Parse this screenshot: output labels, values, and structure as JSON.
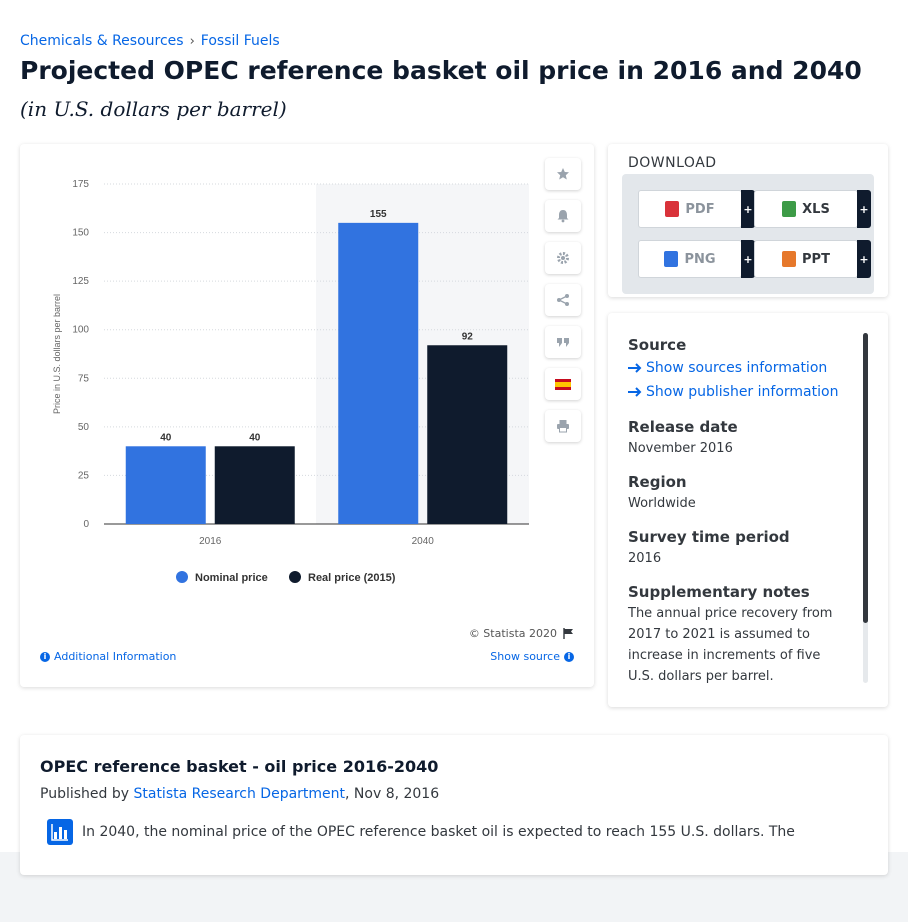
{
  "breadcrumb": [
    {
      "label": "Chemicals & Resources"
    },
    {
      "label": "Fossil Fuels"
    }
  ],
  "breadcrumb_sep": "›",
  "page": {
    "title": "Projected OPEC reference basket oil price in 2016 and 2040",
    "subtitle": "(in U.S. dollars per barrel)"
  },
  "chart_data": {
    "type": "bar",
    "categories": [
      "2016",
      "2040"
    ],
    "series": [
      {
        "name": "Nominal price",
        "values": [
          40,
          155
        ],
        "color": "#3173e0"
      },
      {
        "name": "Real price (2015)",
        "values": [
          40,
          92
        ],
        "color": "#0f1b2d"
      }
    ],
    "ylabel": "Price in U.S. dollars per barrel",
    "ylim": [
      0,
      175
    ],
    "yticks": [
      0,
      25,
      50,
      75,
      100,
      125,
      150,
      175
    ],
    "grid": true,
    "legend_position": "bottom"
  },
  "chart_footer": {
    "copyright": "© Statista 2020",
    "additional_info": "Additional Information",
    "show_source": "Show source"
  },
  "tools": [
    "star-icon",
    "bell-icon",
    "gear-icon",
    "share-icon",
    "quote-icon",
    "spain-flag-icon",
    "print-icon"
  ],
  "download": {
    "title": "DOWNLOAD",
    "plus": "+",
    "buttons": [
      {
        "label": "PDF",
        "color": "#d9323a"
      },
      {
        "label": "XLS",
        "color": "#3d9b47"
      },
      {
        "label": "PNG",
        "color": "#3173e0"
      },
      {
        "label": "PPT",
        "color": "#e6782b"
      }
    ]
  },
  "meta": {
    "source_label": "Source",
    "show_sources": "Show sources information",
    "show_publisher": "Show publisher information",
    "release_label": "Release date",
    "release_value": "November 2016",
    "region_label": "Region",
    "region_value": "Worldwide",
    "survey_label": "Survey time period",
    "survey_value": "2016",
    "notes_label": "Supplementary notes",
    "notes_value": "The annual price recovery from 2017 to 2021 is assumed to increase in increments of five U.S. dollars per barrel."
  },
  "description": {
    "title": "OPEC reference basket - oil price 2016-2040",
    "published_by": "Published by",
    "publisher": "Statista Research Department",
    "date": ", Nov 8, 2016",
    "text": "In 2040, the nominal price of the OPEC reference basket oil is expected to reach 155 U.S. dollars. The"
  }
}
